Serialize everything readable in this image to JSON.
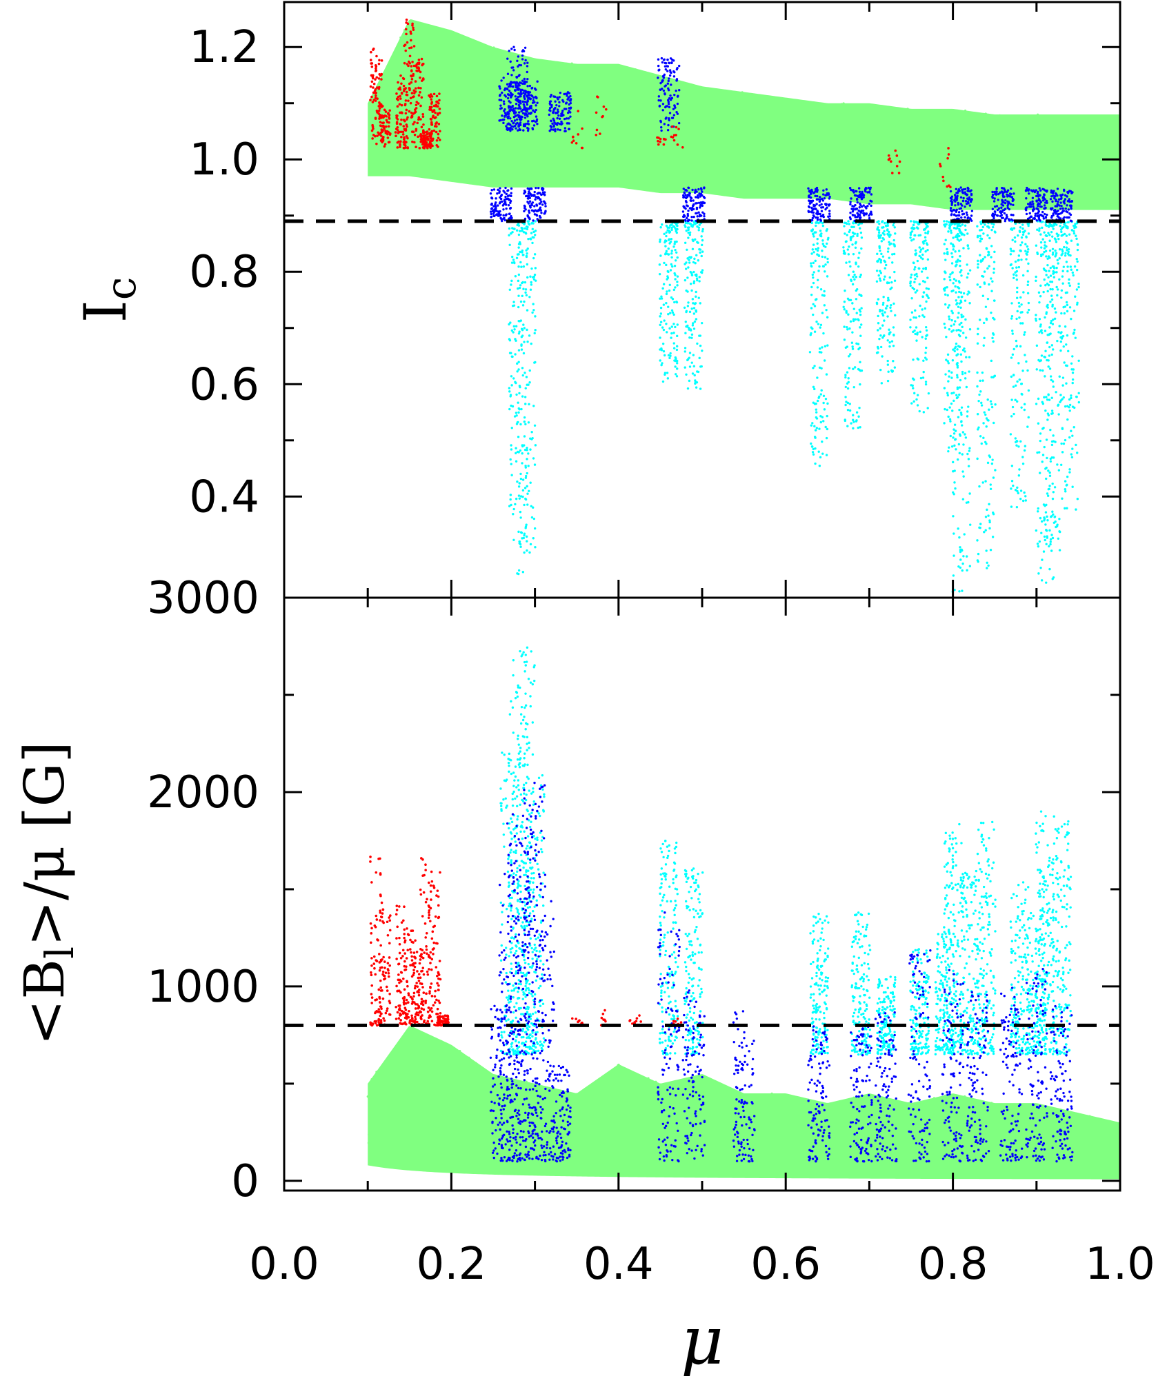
{
  "chart_data": [
    {
      "type": "scatter",
      "panel": "top",
      "ylabel": "I",
      "ylabel_sub": "c",
      "ylim": [
        0.22,
        1.28
      ],
      "xlim": [
        0.0,
        1.0
      ],
      "yticks": [
        0.4,
        0.6,
        0.8,
        1.0,
        1.2
      ],
      "ytick_labels": [
        "0.4",
        "0.6",
        "0.8",
        "1.0",
        "1.2"
      ],
      "threshold": 0.89,
      "grid": false,
      "series": [
        {
          "color": "#80ff80",
          "x": [
            0.1,
            0.15,
            0.2,
            0.25,
            0.3,
            0.35,
            0.4,
            0.45,
            0.5,
            0.55,
            0.6,
            0.65,
            0.7,
            0.75,
            0.8,
            0.85,
            0.9,
            0.95,
            1.0
          ],
          "y_max": [
            1.1,
            1.25,
            1.23,
            1.2,
            1.18,
            1.17,
            1.17,
            1.15,
            1.13,
            1.12,
            1.11,
            1.1,
            1.1,
            1.09,
            1.09,
            1.08,
            1.08,
            1.08,
            1.08
          ],
          "y_min": [
            0.97,
            0.97,
            0.96,
            0.95,
            0.95,
            0.95,
            0.95,
            0.94,
            0.94,
            0.93,
            0.93,
            0.93,
            0.92,
            0.92,
            0.91,
            0.91,
            0.91,
            0.91,
            0.91
          ]
        },
        {
          "color": "#ff0000",
          "x": [
            0.11,
            0.12,
            0.14,
            0.15,
            0.16,
            0.17,
            0.18,
            0.35,
            0.38,
            0.45,
            0.47,
            0.73,
            0.79
          ],
          "y": [
            1.2,
            1.1,
            1.15,
            1.25,
            1.18,
            1.05,
            1.12,
            1.09,
            1.13,
            1.04,
            1.06,
            0.96,
            0.95
          ]
        },
        {
          "color": "#0000ff",
          "x": [
            0.26,
            0.27,
            0.28,
            0.29,
            0.3,
            0.33,
            0.46,
            0.49,
            0.64,
            0.69,
            0.81,
            0.86,
            0.9,
            0.93
          ],
          "y": [
            0.92,
            1.15,
            1.2,
            1.14,
            0.95,
            1.12,
            1.18,
            0.93,
            0.92,
            0.91,
            0.9,
            0.9,
            0.9,
            0.9
          ]
        },
        {
          "color": "#00ffff",
          "x": [
            0.28,
            0.29,
            0.46,
            0.49,
            0.64,
            0.68,
            0.72,
            0.76,
            0.8,
            0.81,
            0.84,
            0.88,
            0.91,
            0.92,
            0.94
          ],
          "y_min": [
            0.26,
            0.3,
            0.6,
            0.59,
            0.45,
            0.52,
            0.6,
            0.55,
            0.47,
            0.23,
            0.27,
            0.38,
            0.24,
            0.3,
            0.37
          ]
        }
      ]
    },
    {
      "type": "scatter",
      "panel": "bottom",
      "xlabel": "μ",
      "ylabel": "<B",
      "ylabel_sub": "l",
      "ylabel_tail": ">/μ [G]",
      "ylim": [
        -50,
        3000
      ],
      "xlim": [
        0.0,
        1.0
      ],
      "yticks": [
        0,
        1000,
        2000,
        3000
      ],
      "ytick_labels": [
        "0",
        "1000",
        "2000",
        "3000"
      ],
      "xticks": [
        0.0,
        0.2,
        0.4,
        0.6,
        0.8,
        1.0
      ],
      "xtick_labels": [
        "0.0",
        "0.2",
        "0.4",
        "0.6",
        "0.8",
        "1.0"
      ],
      "threshold": 800,
      "grid": false,
      "series": [
        {
          "color": "#80ff80",
          "x": [
            0.1,
            0.15,
            0.2,
            0.25,
            0.3,
            0.35,
            0.4,
            0.45,
            0.5,
            0.55,
            0.6,
            0.65,
            0.7,
            0.75,
            0.8,
            0.85,
            0.9,
            0.95,
            1.0
          ],
          "y_max": [
            500,
            800,
            700,
            550,
            500,
            450,
            600,
            500,
            550,
            450,
            450,
            400,
            450,
            400,
            450,
            400,
            400,
            350,
            300
          ]
        },
        {
          "color": "#ff0000",
          "x": [
            0.11,
            0.12,
            0.14,
            0.15,
            0.16,
            0.17,
            0.18,
            0.19,
            0.35,
            0.38,
            0.42,
            0.47
          ],
          "y": [
            1680,
            1400,
            1420,
            1300,
            1200,
            1690,
            1600,
            850,
            880,
            900,
            870,
            850
          ]
        },
        {
          "color": "#0000ff",
          "x": [
            0.26,
            0.27,
            0.28,
            0.29,
            0.3,
            0.31,
            0.33,
            0.46,
            0.49,
            0.55,
            0.64,
            0.69,
            0.72,
            0.76,
            0.8,
            0.83,
            0.87,
            0.9,
            0.93
          ],
          "y_max": [
            900,
            1600,
            1900,
            2000,
            2050,
            1500,
            600,
            1450,
            1000,
            880,
            800,
            800,
            900,
            1200,
            1100,
            1000,
            1000,
            1100,
            900
          ]
        },
        {
          "color": "#00ffff",
          "x": [
            0.27,
            0.28,
            0.29,
            0.3,
            0.46,
            0.49,
            0.64,
            0.69,
            0.72,
            0.76,
            0.79,
            0.8,
            0.82,
            0.84,
            0.88,
            0.9,
            0.91,
            0.93
          ],
          "y_max": [
            2250,
            2700,
            2750,
            2100,
            1750,
            1620,
            1400,
            1380,
            1050,
            1200,
            1300,
            1850,
            1600,
            1860,
            1550,
            1400,
            1900,
            1860
          ]
        }
      ]
    }
  ]
}
